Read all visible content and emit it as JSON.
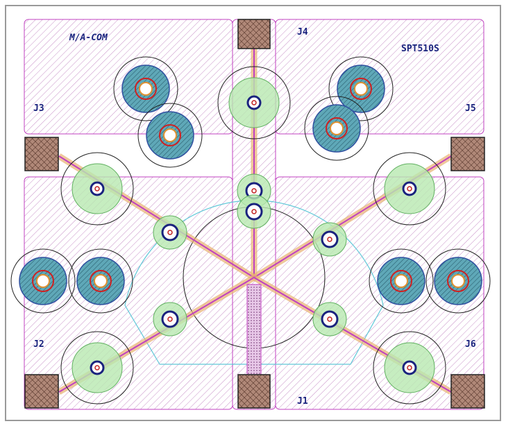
{
  "logo": "M/A-COM",
  "part_number": "SPT510S",
  "ports": [
    {
      "label": "J1"
    },
    {
      "label": "J2"
    },
    {
      "label": "J3"
    },
    {
      "label": "J4"
    },
    {
      "label": "J5"
    },
    {
      "label": "J6"
    }
  ]
}
